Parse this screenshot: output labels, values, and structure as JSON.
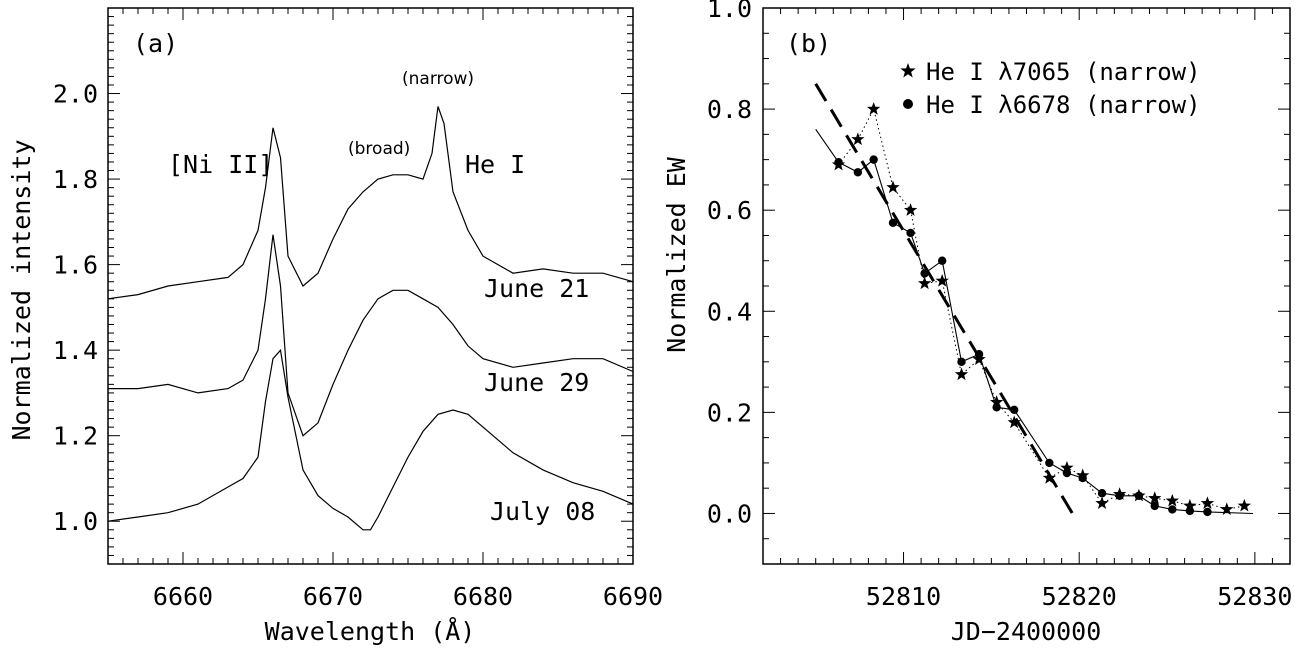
{
  "chart_data": [
    {
      "type": "line",
      "panel_label": "(a)",
      "xlabel": "Wavelength (Å)",
      "ylabel": "Normalized intensity",
      "xlim": [
        6655,
        6690
      ],
      "ylim": [
        0.9,
        2.2
      ],
      "xticks": [
        6660,
        6670,
        6680,
        6690
      ],
      "yticks": [
        1.0,
        1.2,
        1.4,
        1.6,
        1.8,
        2.0
      ],
      "xtick_labels": [
        "6660",
        "6670",
        "6680",
        "6690"
      ],
      "ytick_labels": [
        "1.0",
        "1.2",
        "1.4",
        "1.6",
        "1.8",
        "2.0"
      ],
      "series": [
        {
          "name": "June 21",
          "x": [
            6655,
            6657,
            6659,
            6661,
            6663,
            6664,
            6665,
            6665.5,
            6666,
            6666.5,
            6667,
            6668,
            6669,
            6670,
            6671,
            6672,
            6673,
            6674,
            6675,
            6676,
            6676.6,
            6677,
            6677.4,
            6678,
            6679,
            6680,
            6682,
            6684,
            6686,
            6688,
            6690
          ],
          "y": [
            1.52,
            1.53,
            1.55,
            1.56,
            1.57,
            1.6,
            1.68,
            1.78,
            1.92,
            1.85,
            1.62,
            1.55,
            1.58,
            1.66,
            1.73,
            1.77,
            1.8,
            1.81,
            1.81,
            1.8,
            1.86,
            1.97,
            1.93,
            1.77,
            1.68,
            1.62,
            1.58,
            1.59,
            1.58,
            1.58,
            1.56
          ]
        },
        {
          "name": "June 29",
          "x": [
            6655,
            6657,
            6659,
            6661,
            6663,
            6664,
            6665,
            6665.5,
            6666,
            6666.5,
            6667,
            6668,
            6669,
            6670,
            6671,
            6672,
            6673,
            6674,
            6675,
            6676,
            6677,
            6678,
            6679,
            6680,
            6682,
            6684,
            6686,
            6688,
            6690
          ],
          "y": [
            1.31,
            1.31,
            1.32,
            1.3,
            1.31,
            1.33,
            1.4,
            1.52,
            1.67,
            1.55,
            1.3,
            1.2,
            1.23,
            1.32,
            1.4,
            1.47,
            1.52,
            1.54,
            1.54,
            1.52,
            1.5,
            1.46,
            1.41,
            1.38,
            1.36,
            1.37,
            1.38,
            1.38,
            1.35
          ]
        },
        {
          "name": "July 08",
          "x": [
            6655,
            6657,
            6659,
            6661,
            6663,
            6664,
            6665,
            6665.5,
            6666,
            6666.5,
            6667,
            6668,
            6669,
            6670,
            6671,
            6672,
            6672.5,
            6673,
            6674,
            6675,
            6676,
            6677,
            6678,
            6679,
            6680,
            6682,
            6684,
            6686,
            6688,
            6690
          ],
          "y": [
            1.0,
            1.01,
            1.02,
            1.04,
            1.08,
            1.1,
            1.15,
            1.28,
            1.38,
            1.4,
            1.29,
            1.12,
            1.06,
            1.03,
            1.01,
            0.98,
            0.98,
            1.01,
            1.08,
            1.15,
            1.21,
            1.25,
            1.26,
            1.25,
            1.22,
            1.16,
            1.12,
            1.09,
            1.07,
            1.04
          ]
        }
      ],
      "annotations": [
        "[Ni II]",
        "(broad)",
        "(narrow)",
        "He I",
        "June 21",
        "June 29",
        "July 08"
      ]
    },
    {
      "type": "scatter",
      "panel_label": "(b)",
      "xlabel": "JD−2400000",
      "ylabel": "Normalized EW",
      "xlim": [
        52802,
        52832
      ],
      "ylim": [
        -0.1,
        1.0
      ],
      "xticks": [
        52810,
        52820,
        52830
      ],
      "yticks": [
        0.0,
        0.2,
        0.4,
        0.6,
        0.8,
        1.0
      ],
      "xtick_labels": [
        "52810",
        "52820",
        "52830"
      ],
      "ytick_labels": [
        "0.0",
        "0.2",
        "0.4",
        "0.6",
        "0.8",
        "1.0"
      ],
      "series": [
        {
          "name": "He I λ7065 (narrow)",
          "marker": "star",
          "line": "dotted",
          "x": [
            52806.3,
            52807.4,
            52808.3,
            52809.4,
            52810.4,
            52811.2,
            52812.2,
            52813.3,
            52814.3,
            52815.3,
            52816.3,
            52818.3,
            52819.3,
            52820.2,
            52821.3,
            52822.3,
            52823.4,
            52824.3,
            52825.3,
            52826.3,
            52827.3,
            52828.4,
            52829.4
          ],
          "y": [
            0.69,
            0.74,
            0.8,
            0.645,
            0.6,
            0.455,
            0.46,
            0.275,
            0.305,
            0.22,
            0.18,
            0.07,
            0.09,
            0.075,
            0.02,
            0.038,
            0.035,
            0.03,
            0.025,
            0.015,
            0.02,
            0.008,
            0.015
          ]
        },
        {
          "name": "He I λ6678 (narrow)",
          "marker": "circle",
          "line": "solid",
          "x": [
            52806.3,
            52807.4,
            52808.3,
            52809.4,
            52810.4,
            52811.2,
            52812.2,
            52813.3,
            52814.3,
            52815.3,
            52816.3,
            52818.3,
            52819.3,
            52820.2,
            52821.3,
            52822.3,
            52823.4,
            52824.3,
            52825.3,
            52826.3,
            52827.3
          ],
          "y": [
            0.695,
            0.675,
            0.7,
            0.575,
            0.555,
            0.475,
            0.5,
            0.3,
            0.315,
            0.21,
            0.205,
            0.1,
            0.08,
            0.07,
            0.04,
            0.035,
            0.035,
            0.015,
            0.008,
            0.005,
            0.003
          ]
        }
      ],
      "solid_curve": {
        "x": [
          52805.0,
          52806.3,
          52807.4,
          52808.3,
          52809.4,
          52810.4,
          52811.2,
          52812.2,
          52813.3,
          52814.3,
          52815.3,
          52816.3,
          52818.3,
          52819.3,
          52820.2,
          52821.3,
          52822.3,
          52823.4,
          52824.3,
          52825.3,
          52826.3,
          52827.3,
          52829.9
        ],
        "y": [
          0.76,
          0.695,
          0.675,
          0.7,
          0.575,
          0.555,
          0.475,
          0.5,
          0.3,
          0.315,
          0.21,
          0.205,
          0.1,
          0.08,
          0.07,
          0.04,
          0.035,
          0.035,
          0.015,
          0.008,
          0.005,
          0.003,
          0.0
        ]
      },
      "dashed_fit": {
        "x": [
          52805.0,
          52819.7
        ],
        "y": [
          0.85,
          -0.005
        ]
      },
      "legend_placement": "top-right"
    }
  ]
}
